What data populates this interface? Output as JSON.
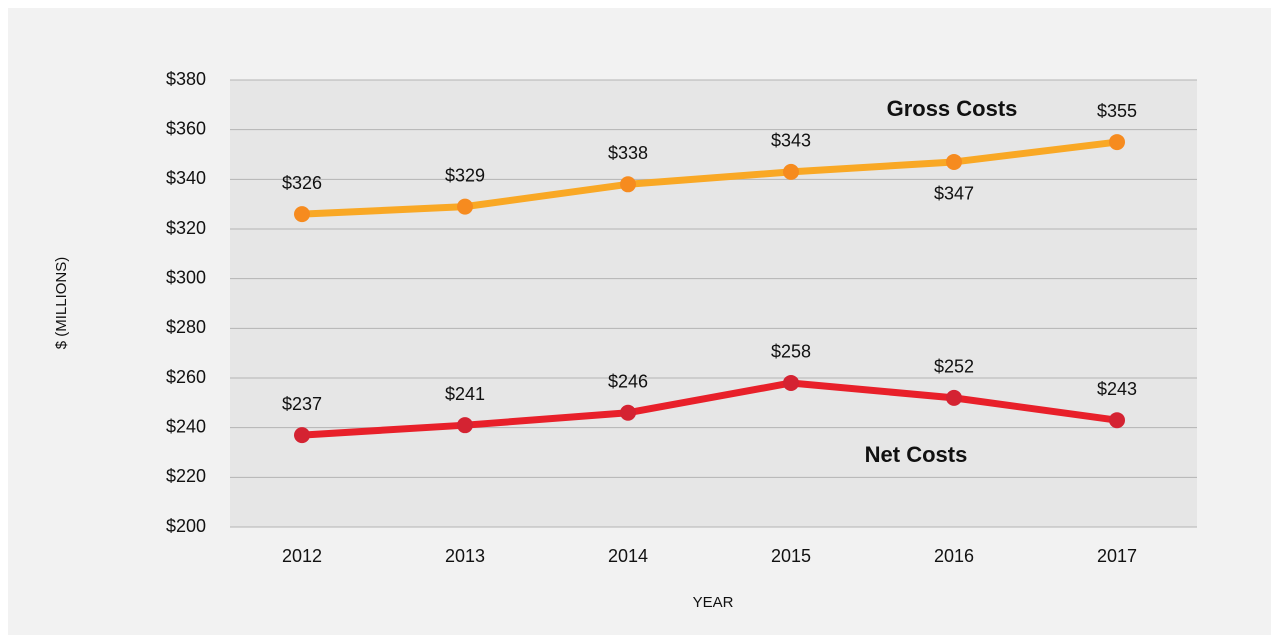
{
  "chart_data": {
    "type": "line",
    "categories": [
      "2012",
      "2013",
      "2014",
      "2015",
      "2016",
      "2017"
    ],
    "series": [
      {
        "name": "Gross Costs",
        "color": "#f9a825",
        "marker_color": "#f68b1f",
        "values": [
          326,
          329,
          338,
          343,
          347,
          355
        ],
        "value_labels": [
          "$326",
          "$329",
          "$338",
          "$343",
          "$347",
          "$355"
        ]
      },
      {
        "name": "Net Costs",
        "color": "#e8202a",
        "marker_color": "#d42332",
        "values": [
          237,
          241,
          246,
          258,
          252,
          243
        ],
        "value_labels": [
          "$237",
          "$241",
          "$246",
          "$258",
          "$252",
          "$243"
        ]
      }
    ],
    "x_label": "YEAR",
    "y_label": "$ (MILLIONS)",
    "ylim": [
      200,
      380
    ],
    "yticks": [
      {
        "value": 200,
        "label": "$200"
      },
      {
        "value": 220,
        "label": "$220"
      },
      {
        "value": 240,
        "label": "$240"
      },
      {
        "value": 260,
        "label": "$260"
      },
      {
        "value": 280,
        "label": "$280"
      },
      {
        "value": 300,
        "label": "$300"
      },
      {
        "value": 320,
        "label": "$320"
      },
      {
        "value": 340,
        "label": "$340"
      },
      {
        "value": 360,
        "label": "$360"
      },
      {
        "value": 380,
        "label": "$380"
      }
    ],
    "grid": true
  }
}
